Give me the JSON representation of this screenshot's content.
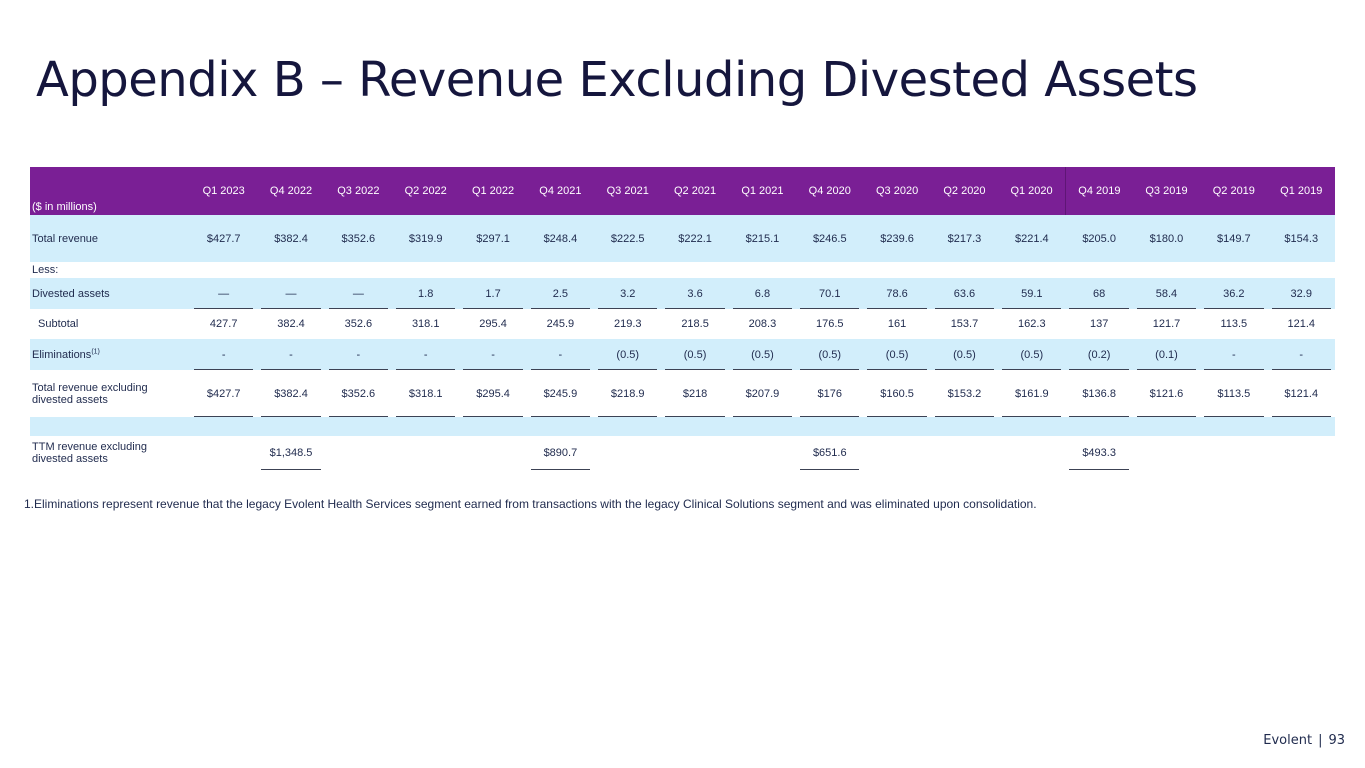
{
  "title": "Appendix B – Revenue Excluding Divested Assets",
  "table": {
    "unit_label": "($ in millions)",
    "columns": [
      "Q1 2023",
      "Q4 2022",
      "Q3 2022",
      "Q2 2022",
      "Q1 2022",
      "Q4 2021",
      "Q3 2021",
      "Q2 2021",
      "Q1 2021",
      "Q4 2020",
      "Q3 2020",
      "Q2 2020",
      "Q1 2020",
      "Q4 2019",
      "Q3 2019",
      "Q2 2019",
      "Q1 2019"
    ],
    "total_revenue": {
      "label": "Total revenue",
      "values": [
        "$427.7",
        "$382.4",
        "$352.6",
        "$319.9",
        "$297.1",
        "$248.4",
        "$222.5",
        "$222.1",
        "$215.1",
        "$246.5",
        "$239.6",
        "$217.3",
        "$221.4",
        "$205.0",
        "$180.0",
        "$149.7",
        "$154.3"
      ]
    },
    "less_label": "Less:",
    "divested_assets": {
      "label": "Divested assets",
      "values": [
        "—",
        "—",
        "—",
        "1.8",
        "1.7",
        "2.5",
        "3.2",
        "3.6",
        "6.8",
        "70.1",
        "78.6",
        "63.6",
        "59.1",
        "68",
        "58.4",
        "36.2",
        "32.9"
      ]
    },
    "subtotal": {
      "label": "Subtotal",
      "values": [
        "427.7",
        "382.4",
        "352.6",
        "318.1",
        "295.4",
        "245.9",
        "219.3",
        "218.5",
        "208.3",
        "176.5",
        "161",
        "153.7",
        "162.3",
        "137",
        "121.7",
        "113.5",
        "121.4"
      ]
    },
    "eliminations": {
      "label": "Eliminations",
      "footnote_ref": "(1)",
      "values": [
        "-",
        "-",
        "-",
        "-",
        "-",
        "-",
        "(0.5)",
        "(0.5)",
        "(0.5)",
        "(0.5)",
        "(0.5)",
        "(0.5)",
        "(0.5)",
        "(0.2)",
        "(0.1)",
        "-",
        "-"
      ]
    },
    "total_excluding": {
      "label_line1": "Total revenue excluding",
      "label_line2": "divested assets",
      "values": [
        "$427.7",
        "$382.4",
        "$352.6",
        "$318.1",
        "$295.4",
        "$245.9",
        "$218.9",
        "$218",
        "$207.9",
        "$176",
        "$160.5",
        "$153.2",
        "$161.9",
        "$136.8",
        "$121.6",
        "$113.5",
        "$121.4"
      ]
    },
    "ttm": {
      "label_line1": "TTM revenue excluding",
      "label_line2": "divested assets",
      "values": [
        "",
        "$1,348.5",
        "",
        "",
        "",
        "$890.7",
        "",
        "",
        "",
        "$651.6",
        "",
        "",
        "",
        "$493.3",
        "",
        "",
        ""
      ]
    }
  },
  "footnote": "1.Eliminations represent revenue that the legacy Evolent Health Services segment earned from transactions with the legacy Clinical Solutions segment and was eliminated upon consolidation.",
  "footer": {
    "brand": "Evolent",
    "separator": "|",
    "page_number": "93"
  },
  "colors": {
    "header_bg": "#7a1f95",
    "band_bg": "#d2eefb",
    "title": "#15163d",
    "text": "#1f2a4d"
  }
}
